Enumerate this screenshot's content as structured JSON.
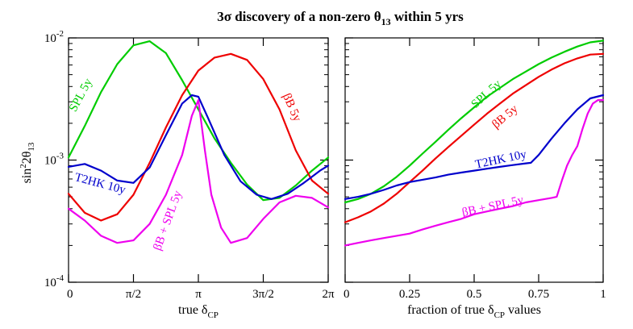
{
  "figure": {
    "title_main": "3σ discovery of a non-zero θ",
    "title_sub": "13",
    "title_tail": " within 5 yrs",
    "ylabel_main": "sin",
    "ylabel_sup": "2",
    "ylabel_mid": "2θ",
    "ylabel_sub": "13",
    "colors": {
      "spl": "#00cc00",
      "bb": "#ee0000",
      "t2hk": "#0000cc",
      "combo": "#ee00ee",
      "axis": "#000000"
    }
  },
  "chart_data": [
    {
      "type": "line",
      "panel": "left",
      "xlabel_main": "true δ",
      "xlabel_sub": "CP",
      "ylabel": "sin²2θ13",
      "yscale": "log",
      "ylim": [
        0.0001,
        0.01
      ],
      "xlim": [
        0,
        6.2832
      ],
      "xticks": [
        {
          "value": 0,
          "label": "0"
        },
        {
          "value": 1.5708,
          "label": "π/2"
        },
        {
          "value": 3.1416,
          "label": "π"
        },
        {
          "value": 4.7124,
          "label": "3π/2"
        },
        {
          "value": 6.2832,
          "label": "2π"
        }
      ],
      "yticks": [
        {
          "value": 0.0001,
          "base": "10",
          "exp": "-4"
        },
        {
          "value": 0.001,
          "base": "10",
          "exp": "-3"
        },
        {
          "value": 0.01,
          "base": "10",
          "exp": "-2"
        }
      ],
      "series": [
        {
          "name": "SPL 5y",
          "key": "spl",
          "x": [
            0,
            0.3927,
            0.7854,
            1.1781,
            1.5708,
            1.9635,
            2.3562,
            2.7489,
            3.1416,
            3.5343,
            3.927,
            4.3197,
            4.7124,
            5.1051,
            5.4978,
            5.8905,
            6.2832
          ],
          "y": [
            0.00105,
            0.0019,
            0.0036,
            0.0061,
            0.0087,
            0.0094,
            0.0075,
            0.0045,
            0.0026,
            0.0015,
            0.00095,
            0.00063,
            0.00047,
            0.00049,
            0.00062,
            0.00082,
            0.00105
          ]
        },
        {
          "name": "βB 5y",
          "key": "bb",
          "x": [
            0,
            0.3927,
            0.7854,
            1.1781,
            1.5708,
            1.9635,
            2.3562,
            2.7489,
            3.1416,
            3.5343,
            3.927,
            4.3197,
            4.7124,
            5.1051,
            5.4978,
            5.8905,
            6.2832
          ],
          "y": [
            0.00053,
            0.00037,
            0.00032,
            0.00036,
            0.00052,
            0.00095,
            0.00185,
            0.0034,
            0.0054,
            0.0069,
            0.0074,
            0.0066,
            0.0046,
            0.0026,
            0.0012,
            0.00068,
            0.00053
          ]
        },
        {
          "name": "T2HK 10y",
          "key": "t2hk",
          "x": [
            0,
            0.3927,
            0.7854,
            1.1781,
            1.5708,
            1.9635,
            2.3562,
            2.7489,
            2.9845,
            3.1416,
            3.3772,
            3.7699,
            4.1626,
            4.5553,
            4.9087,
            5.3014,
            5.6941,
            6.0868,
            6.2832
          ],
          "y": [
            0.00088,
            0.00093,
            0.00082,
            0.00068,
            0.00065,
            0.00087,
            0.0016,
            0.0029,
            0.0034,
            0.0033,
            0.0022,
            0.0011,
            0.00067,
            0.00052,
            0.00048,
            0.00053,
            0.00065,
            0.00082,
            0.0009
          ]
        },
        {
          "name": "βB + SPL 5y",
          "key": "combo",
          "x": [
            0,
            0.3927,
            0.7854,
            1.1781,
            1.5708,
            1.9635,
            2.3562,
            2.7489,
            2.9845,
            3.1416,
            3.2987,
            3.4558,
            3.6914,
            3.927,
            4.3197,
            4.7124,
            5.1051,
            5.4978,
            5.8905,
            6.2832
          ],
          "y": [
            0.0004,
            0.00032,
            0.00024,
            0.00021,
            0.00022,
            0.0003,
            0.00052,
            0.0011,
            0.0023,
            0.0031,
            0.0012,
            0.00052,
            0.00028,
            0.00021,
            0.00023,
            0.00033,
            0.00045,
            0.00051,
            0.00049,
            0.00041
          ]
        }
      ],
      "annotations": [
        {
          "series": "spl",
          "text": "SPL 5y"
        },
        {
          "series": "bb",
          "text": "βB 5y"
        },
        {
          "series": "t2hk",
          "text": "T2HK 10y"
        },
        {
          "series": "combo",
          "text": "βB + SPL 5y"
        }
      ]
    },
    {
      "type": "line",
      "panel": "right",
      "xlabel_main": "fraction of true δ",
      "xlabel_sub": "CP",
      "xlabel_tail": " values",
      "yscale": "log",
      "ylim": [
        0.0001,
        0.01
      ],
      "xlim": [
        0,
        1
      ],
      "xticks": [
        {
          "value": 0,
          "label": "0"
        },
        {
          "value": 0.25,
          "label": "0.25"
        },
        {
          "value": 0.5,
          "label": "0.5"
        },
        {
          "value": 0.75,
          "label": "0.75"
        },
        {
          "value": 1,
          "label": "1"
        }
      ],
      "series": [
        {
          "name": "SPL 5y",
          "key": "spl",
          "x": [
            0,
            0.05,
            0.1,
            0.15,
            0.2,
            0.25,
            0.3,
            0.35,
            0.4,
            0.45,
            0.5,
            0.55,
            0.6,
            0.65,
            0.7,
            0.75,
            0.8,
            0.85,
            0.9,
            0.95,
            1
          ],
          "y": [
            0.00045,
            0.00048,
            0.00053,
            0.00061,
            0.00073,
            0.0009,
            0.00113,
            0.00141,
            0.00177,
            0.0022,
            0.0027,
            0.0033,
            0.0039,
            0.0046,
            0.0053,
            0.0061,
            0.0069,
            0.0077,
            0.0085,
            0.0092,
            0.0095
          ]
        },
        {
          "name": "βB 5y",
          "key": "bb",
          "x": [
            0,
            0.05,
            0.1,
            0.15,
            0.2,
            0.25,
            0.3,
            0.35,
            0.4,
            0.45,
            0.5,
            0.55,
            0.6,
            0.65,
            0.7,
            0.75,
            0.8,
            0.85,
            0.9,
            0.95,
            1
          ],
          "y": [
            0.00031,
            0.00034,
            0.00038,
            0.00044,
            0.00053,
            0.00066,
            0.00082,
            0.00103,
            0.00128,
            0.00158,
            0.00195,
            0.0024,
            0.0029,
            0.0035,
            0.0041,
            0.0048,
            0.0055,
            0.0062,
            0.0068,
            0.0073,
            0.0074
          ]
        },
        {
          "name": "T2HK 10y",
          "key": "t2hk",
          "x": [
            0,
            0.05,
            0.1,
            0.15,
            0.2,
            0.25,
            0.3,
            0.35,
            0.4,
            0.45,
            0.5,
            0.55,
            0.6,
            0.65,
            0.7,
            0.72,
            0.75,
            0.8,
            0.85,
            0.9,
            0.95,
            1
          ],
          "y": [
            0.00048,
            0.0005,
            0.00053,
            0.00057,
            0.00062,
            0.00066,
            0.00069,
            0.00072,
            0.00076,
            0.00079,
            0.00082,
            0.00085,
            0.00088,
            0.00091,
            0.00094,
            0.00095,
            0.0011,
            0.0015,
            0.002,
            0.0026,
            0.0032,
            0.0034
          ]
        },
        {
          "name": "βB + SPL 5y",
          "key": "combo",
          "x": [
            0,
            0.05,
            0.1,
            0.15,
            0.2,
            0.25,
            0.3,
            0.35,
            0.4,
            0.45,
            0.5,
            0.55,
            0.6,
            0.65,
            0.7,
            0.75,
            0.8,
            0.82,
            0.84,
            0.86,
            0.88,
            0.9,
            0.92,
            0.94,
            0.96,
            0.98,
            1
          ],
          "y": [
            0.0002,
            0.00021,
            0.00022,
            0.00023,
            0.00024,
            0.00025,
            0.00027,
            0.00029,
            0.00031,
            0.00033,
            0.00036,
            0.00038,
            0.0004,
            0.00042,
            0.00045,
            0.00047,
            0.00049,
            0.0005,
            0.00068,
            0.0009,
            0.0011,
            0.0013,
            0.0018,
            0.0024,
            0.0029,
            0.0031,
            0.0031
          ]
        }
      ],
      "annotations": [
        {
          "series": "spl",
          "text": "SPL 5y"
        },
        {
          "series": "bb",
          "text": "βB 5y"
        },
        {
          "series": "t2hk",
          "text": "T2HK 10y"
        },
        {
          "series": "combo",
          "text": "βB + SPL 5y"
        }
      ]
    }
  ]
}
